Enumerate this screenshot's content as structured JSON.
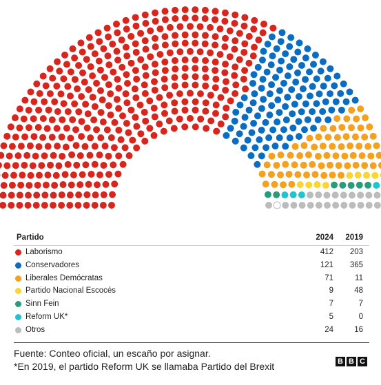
{
  "chart_data": {
    "type": "parliament",
    "total_seats": 650,
    "seats": [
      {
        "party": "Laborismo",
        "color": "#d7261e",
        "y2024": 412,
        "y2019": 203
      },
      {
        "party": "Conservadores",
        "color": "#0a6dc2",
        "y2024": 121,
        "y2019": 365
      },
      {
        "party": "Liberales Demócratas",
        "color": "#f3a11e",
        "y2024": 71,
        "y2019": 11
      },
      {
        "party": "Partido Nacional Escocés",
        "color": "#f9d53a",
        "y2024": 9,
        "y2019": 48
      },
      {
        "party": "Sinn Fein",
        "color": "#2a9b7c",
        "y2024": 7,
        "y2019": 7
      },
      {
        "party": "Reform UK*",
        "color": "#1fc4d3",
        "y2024": 5,
        "y2019": 0
      },
      {
        "party": "Otros",
        "color": "#bcbcbc",
        "y2024": 24,
        "y2019": 16
      }
    ],
    "unassigned": 1,
    "unassigned_color": "#ffffff"
  },
  "table": {
    "col_party": "Partido",
    "col_2024": "2024",
    "col_2019": "2019"
  },
  "footer": {
    "source": "Fuente: Conteo oficial, un escaño por asignar.",
    "note": "*En 2019, el partido Reform UK se llamaba Partido del Brexit"
  },
  "logo": [
    "B",
    "B",
    "C"
  ]
}
